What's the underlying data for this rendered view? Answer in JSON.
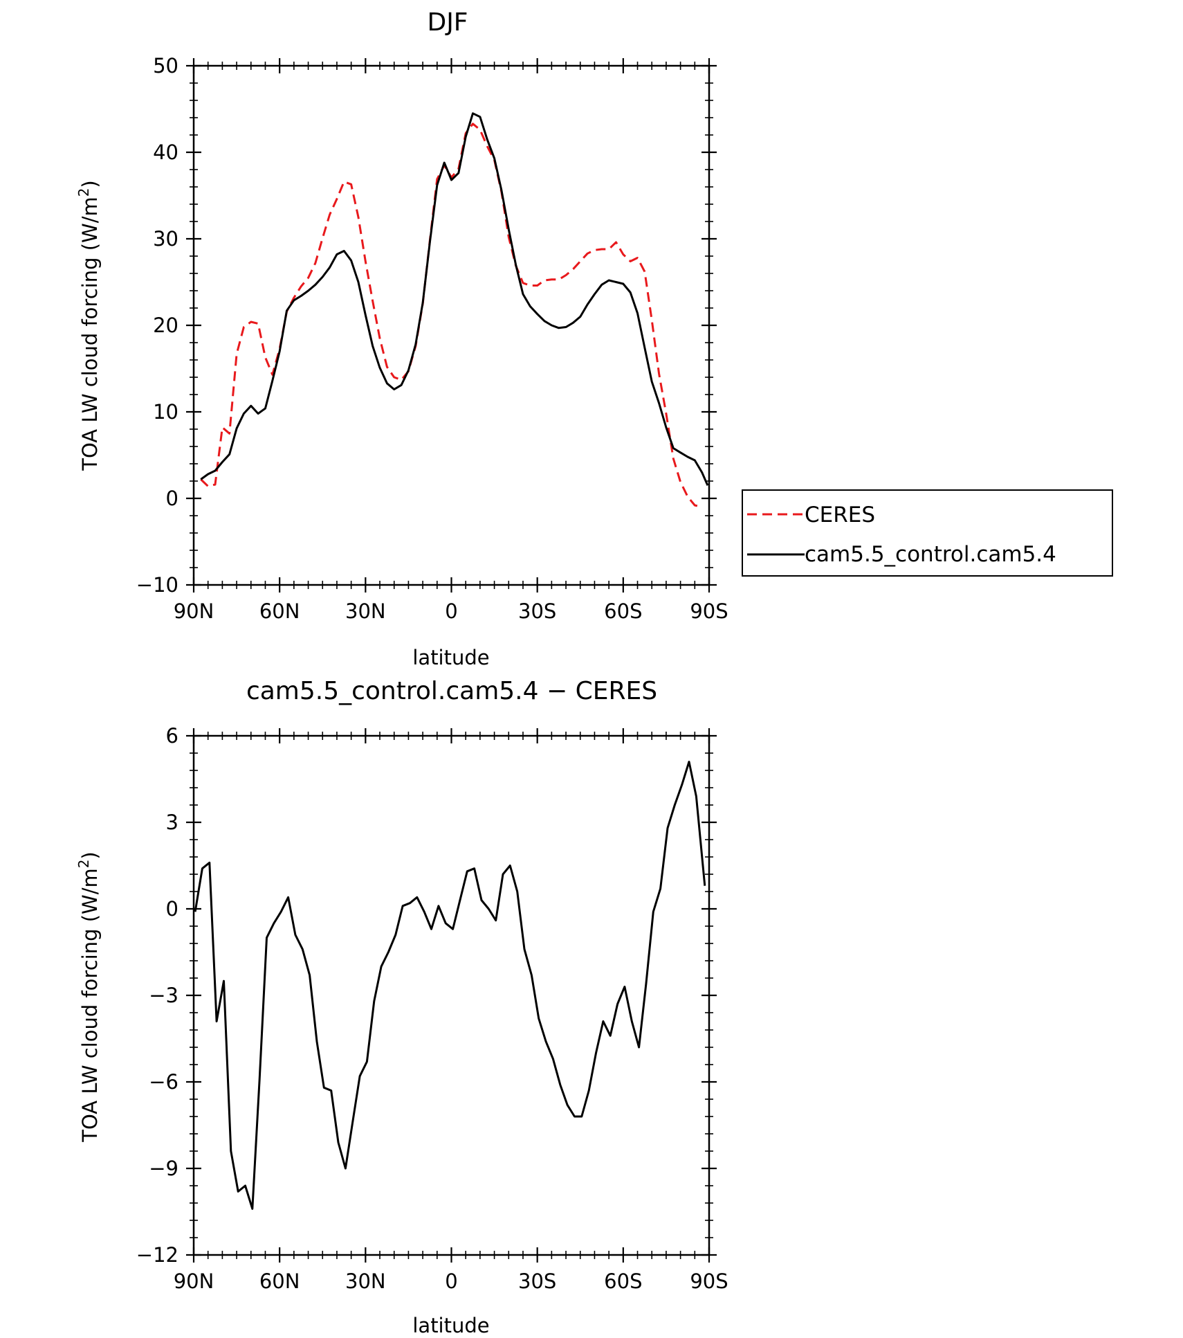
{
  "chart_data": [
    {
      "type": "line",
      "title": "DJF",
      "xlabel": "latitude",
      "ylabel": "TOA LW cloud forcing (W/m",
      "ylabel_sup": "2",
      "ylabel_end": ")",
      "xlim": [
        90,
        -90
      ],
      "ylim": [
        -10,
        50
      ],
      "xticks": [
        {
          "v": 90,
          "label": "90N"
        },
        {
          "v": 60,
          "label": "60N"
        },
        {
          "v": 30,
          "label": "30N"
        },
        {
          "v": 0,
          "label": "0"
        },
        {
          "v": -30,
          "label": "30S"
        },
        {
          "v": -60,
          "label": "60S"
        },
        {
          "v": -90,
          "label": "90S"
        }
      ],
      "yticks": [
        {
          "v": 50,
          "label": "50"
        },
        {
          "v": 40,
          "label": "40"
        },
        {
          "v": 30,
          "label": "30"
        },
        {
          "v": 20,
          "label": "20"
        },
        {
          "v": 10,
          "label": "10"
        },
        {
          "v": 0,
          "label": "0"
        },
        {
          "v": -10,
          "label": "−10"
        }
      ],
      "legend_position": "right",
      "series": [
        {
          "name": "CERES",
          "color": "#e8191c",
          "style": "dashed",
          "x": [
            87.5,
            85,
            82.5,
            80,
            77.5,
            75,
            72.5,
            70,
            67.5,
            65,
            62.5,
            60,
            57.5,
            55,
            52.5,
            50,
            47.5,
            45,
            42.5,
            40,
            37.5,
            35,
            32.5,
            30,
            27.5,
            25,
            22.5,
            20,
            17.5,
            15,
            12.5,
            10,
            7.5,
            5,
            2.5,
            0,
            -2.5,
            -5,
            -7.5,
            -10,
            -12.5,
            -15,
            -17.5,
            -20,
            -22.5,
            -25,
            -27.5,
            -30,
            -32.5,
            -35,
            -37.5,
            -40,
            -42.5,
            -45,
            -47.5,
            -50,
            -52.5,
            -55,
            -57.5,
            -60,
            -62.5,
            -65,
            -67.5,
            -70,
            -72.5,
            -75,
            -77.5,
            -80,
            -82.5,
            -85,
            -87.5
          ],
          "y": [
            2.2,
            1.4,
            1.6,
            8.2,
            7.5,
            16.7,
            19.8,
            20.4,
            20.2,
            16.3,
            14.3,
            17.3,
            21.6,
            23.2,
            24.5,
            25.5,
            27.2,
            30.1,
            32.8,
            34.6,
            36.6,
            36.3,
            32.5,
            27.4,
            22.8,
            18.5,
            15.2,
            14.0,
            13.7,
            14.7,
            17.6,
            22.5,
            29.9,
            36.9,
            38.5,
            37.1,
            38.1,
            42.2,
            43.3,
            42.6,
            40.7,
            39.1,
            35.4,
            30.2,
            26.9,
            24.9,
            24.6,
            24.6,
            25.2,
            25.3,
            25.3,
            25.8,
            26.5,
            27.4,
            28.3,
            28.7,
            28.8,
            28.8,
            29.6,
            28.2,
            27.4,
            27.8,
            26.2,
            20.6,
            14.4,
            9.8,
            4.6,
            1.9,
            0.2,
            -0.8,
            -1.0
          ]
        },
        {
          "name": "cam5.5_control.cam5.4",
          "color": "#000000",
          "style": "solid",
          "x": [
            87.5,
            85,
            82.5,
            80,
            77.5,
            75,
            72.5,
            70,
            67.5,
            65,
            62.5,
            60,
            57.5,
            55,
            52.5,
            50,
            47.5,
            45,
            42.5,
            40,
            37.5,
            35,
            32.5,
            30,
            27.5,
            25,
            22.5,
            20,
            17.5,
            15,
            12.5,
            10,
            7.5,
            5,
            2.5,
            0,
            -2.5,
            -5,
            -7.5,
            -10,
            -12.5,
            -15,
            -17.5,
            -20,
            -22.5,
            -25,
            -27.5,
            -30,
            -32.5,
            -35,
            -37.5,
            -40,
            -42.5,
            -45,
            -47.5,
            -50,
            -52.5,
            -55,
            -57.5,
            -60,
            -62.5,
            -65,
            -67.5,
            -70,
            -72.5,
            -75,
            -77.5,
            -80,
            -82.5,
            -85,
            -87.5,
            -89.5
          ],
          "y": [
            2.2,
            2.8,
            3.2,
            4.2,
            5.1,
            8.1,
            9.8,
            10.7,
            9.8,
            10.4,
            13.6,
            17.0,
            21.7,
            22.9,
            23.4,
            24.0,
            24.7,
            25.6,
            26.7,
            28.2,
            28.6,
            27.5,
            25.0,
            21.2,
            17.6,
            15.1,
            13.3,
            12.6,
            13.1,
            14.8,
            17.8,
            22.6,
            29.7,
            36.2,
            38.8,
            36.8,
            37.6,
            41.8,
            44.5,
            44.1,
            41.5,
            39.3,
            35.6,
            31.1,
            27.0,
            23.6,
            22.2,
            21.3,
            20.5,
            20.0,
            19.7,
            19.8,
            20.3,
            21.0,
            22.4,
            23.6,
            24.7,
            25.2,
            25.0,
            24.8,
            23.8,
            21.4,
            17.4,
            13.5,
            11.0,
            8.2,
            5.8,
            5.3,
            4.8,
            4.4,
            3.0,
            1.5
          ]
        }
      ],
      "legend": {
        "items": [
          "CERES",
          "cam5.5_control.cam5.4"
        ]
      }
    },
    {
      "type": "line",
      "title": "cam5.5_control.cam5.4 − CERES",
      "xlabel": "latitude",
      "ylabel": "TOA LW cloud forcing (W/m",
      "ylabel_sup": "2",
      "ylabel_end": ")",
      "xlim": [
        90,
        -90
      ],
      "ylim": [
        -12,
        6
      ],
      "xticks": [
        {
          "v": 90,
          "label": "90N"
        },
        {
          "v": 60,
          "label": "60N"
        },
        {
          "v": 30,
          "label": "30N"
        },
        {
          "v": 0,
          "label": "0"
        },
        {
          "v": -30,
          "label": "30S"
        },
        {
          "v": -60,
          "label": "60S"
        },
        {
          "v": -90,
          "label": "90S"
        }
      ],
      "yticks": [
        {
          "v": 6,
          "label": "6"
        },
        {
          "v": 3,
          "label": "3"
        },
        {
          "v": 0,
          "label": "0"
        },
        {
          "v": -3,
          "label": "−3"
        },
        {
          "v": -6,
          "label": "−6"
        },
        {
          "v": -9,
          "label": "−9"
        },
        {
          "v": -12,
          "label": "−12"
        }
      ],
      "series": [
        {
          "color": "#000000",
          "style": "solid",
          "x": [
            89.5,
            87,
            84.5,
            82,
            79.5,
            77,
            74.5,
            72,
            69.5,
            67,
            64.5,
            62,
            59.5,
            57,
            54.5,
            52,
            49.5,
            47,
            44.5,
            42,
            39.5,
            37,
            34.5,
            32,
            29.5,
            27,
            24.5,
            22,
            19.5,
            17,
            14.5,
            12,
            9.5,
            7,
            4.5,
            2,
            -0.5,
            -3,
            -5.5,
            -8,
            -10.5,
            -13,
            -15.5,
            -18,
            -20.5,
            -23,
            -25.5,
            -28,
            -30.5,
            -33,
            -35.5,
            -38,
            -40.5,
            -43,
            -45.5,
            -48,
            -50.5,
            -53,
            -55.5,
            -58,
            -60.5,
            -63,
            -65.5,
            -68,
            -70.5,
            -73,
            -75.5,
            -78,
            -80.5,
            -83,
            -85.5,
            -88.5
          ],
          "y": [
            -0.1,
            1.4,
            1.6,
            -3.9,
            -2.5,
            -8.4,
            -9.8,
            -9.6,
            -10.4,
            -5.9,
            -1.0,
            -0.5,
            -0.1,
            0.4,
            -0.9,
            -1.4,
            -2.3,
            -4.6,
            -6.2,
            -6.3,
            -8.1,
            -9.0,
            -7.4,
            -5.8,
            -5.3,
            -3.2,
            -2.0,
            -1.5,
            -0.9,
            0.1,
            0.2,
            0.4,
            -0.1,
            -0.7,
            0.1,
            -0.5,
            -0.7,
            0.3,
            1.3,
            1.4,
            0.3,
            0.0,
            -0.4,
            1.2,
            1.5,
            0.6,
            -1.4,
            -2.3,
            -3.8,
            -4.6,
            -5.2,
            -6.1,
            -6.8,
            -7.2,
            -7.2,
            -6.3,
            -5.0,
            -3.9,
            -4.4,
            -3.3,
            -2.7,
            -3.9,
            -4.8,
            -2.6,
            -0.1,
            0.7,
            2.8,
            3.6,
            4.3,
            5.1,
            3.9,
            0.8
          ]
        }
      ]
    }
  ]
}
